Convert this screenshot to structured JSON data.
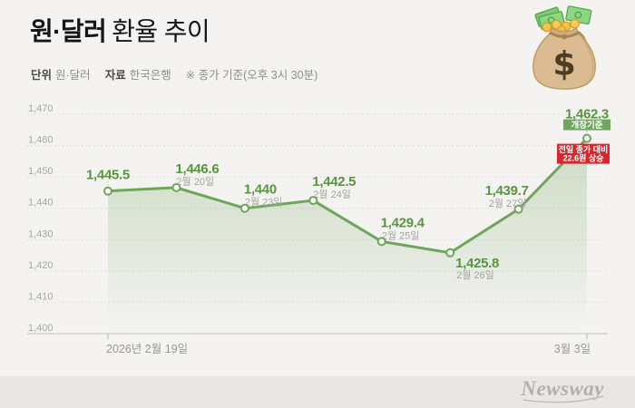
{
  "header": {
    "title_bold": "원·달러",
    "title_rest": "환율 추이",
    "meta": [
      {
        "label": "단위",
        "value": "원·달러"
      },
      {
        "label": "자료",
        "value": "한국은행"
      }
    ],
    "note": "※ 종가 기준(오후 3시 30분)"
  },
  "chart_data": {
    "type": "line",
    "title": "원·달러 환율 추이",
    "unit": "원·달러",
    "source": "한국은행",
    "categories": [
      "2026년 2월 19일",
      "2월 20일",
      "2월 23일",
      "2월 24일",
      "2월 25일",
      "2월 26일",
      "2월 27일",
      "3월 3일"
    ],
    "values": [
      1445.5,
      1446.6,
      1440,
      1442.5,
      1429.4,
      1425.8,
      1439.7,
      1462.3
    ],
    "value_labels": [
      "1,445.5",
      "1,446.6",
      "1,440",
      "1,442.5",
      "1,429.4",
      "1,425.8",
      "1,439.7",
      "1,462.3"
    ],
    "point_date_labels": [
      null,
      "2월 20일",
      "2월 23일",
      "2월 24일",
      "2월 25일",
      "2월 26일",
      "2월 27일",
      null
    ],
    "ylim": [
      1400,
      1470
    ],
    "ytick_step": 10,
    "ytick_labels": [
      "1,400",
      "1,410",
      "1,420",
      "1,430",
      "1,440",
      "1,450",
      "1,460",
      "1,470"
    ],
    "xaxis_first_label": "2026년 2월 19일",
    "xaxis_last_label": "3월 3일",
    "grid": "horizontal-dotted",
    "legend": "none",
    "annotations": {
      "last_point_tag": "개장기준",
      "change_badge_line1": "전일 종가 대비",
      "change_badge_line2": "22.6원 상승"
    },
    "colors": {
      "line": "#6ea55b",
      "area_top": "rgba(110,165,88,0.30)",
      "area_bottom": "rgba(110,165,88,0)",
      "value_label": "#57953f",
      "date_label": "#a4a3a1",
      "tag_bg": "#6fa761",
      "badge_bg": "#d8262c",
      "grid": "#d5d4d1",
      "axis": "#c6c5c2"
    }
  },
  "footer": {
    "brand": "Newsway"
  }
}
